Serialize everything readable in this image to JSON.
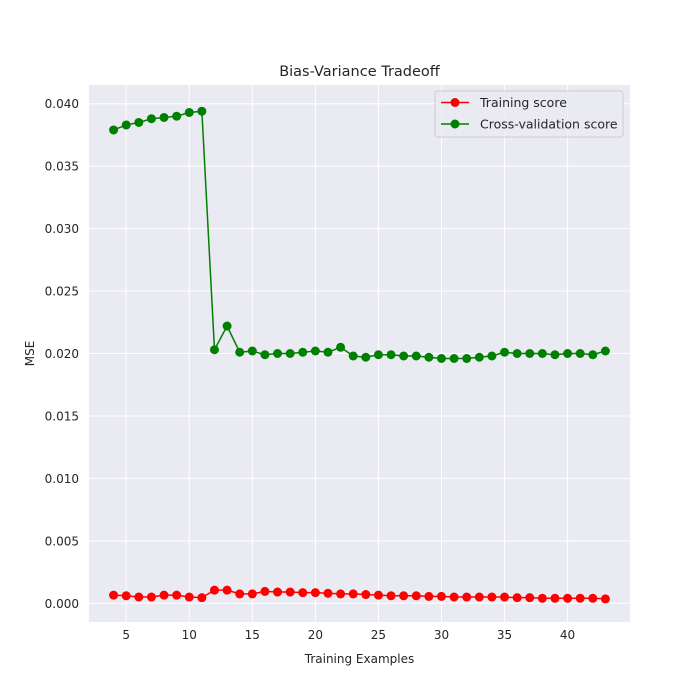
{
  "chart_data": {
    "type": "line",
    "title": "Bias-Variance Tradeoff",
    "xlabel": "Training Examples",
    "ylabel": "MSE",
    "xlim": [
      2.05,
      44.95
    ],
    "ylim": [
      -0.0015,
      0.0415
    ],
    "xticks": [
      5,
      10,
      15,
      20,
      25,
      30,
      35,
      40
    ],
    "yticks": [
      0.0,
      0.005,
      0.01,
      0.015,
      0.02,
      0.025,
      0.03,
      0.035,
      0.04
    ],
    "ytick_labels": [
      "0.000",
      "0.005",
      "0.010",
      "0.015",
      "0.020",
      "0.025",
      "0.030",
      "0.035",
      "0.040"
    ],
    "grid": true,
    "legend": "upper-right",
    "x": [
      4,
      5,
      6,
      7,
      8,
      9,
      10,
      11,
      12,
      13,
      14,
      15,
      16,
      17,
      18,
      19,
      20,
      21,
      22,
      23,
      24,
      25,
      26,
      27,
      28,
      29,
      30,
      31,
      32,
      33,
      34,
      35,
      36,
      37,
      38,
      39,
      40,
      41,
      42,
      43
    ],
    "series": [
      {
        "name": "Training score",
        "color": "#ff0000",
        "values": [
          0.00065,
          0.0006,
          0.0005,
          0.0005,
          0.00065,
          0.00065,
          0.0005,
          0.00045,
          0.00105,
          0.00105,
          0.00075,
          0.00075,
          0.00095,
          0.0009,
          0.0009,
          0.00085,
          0.00085,
          0.0008,
          0.00075,
          0.00075,
          0.0007,
          0.00065,
          0.0006,
          0.0006,
          0.0006,
          0.00055,
          0.00055,
          0.0005,
          0.0005,
          0.0005,
          0.0005,
          0.0005,
          0.00045,
          0.00045,
          0.0004,
          0.0004,
          0.0004,
          0.0004,
          0.0004,
          0.00035
        ]
      },
      {
        "name": "Cross-validation score",
        "color": "#008000",
        "values": [
          0.0379,
          0.0383,
          0.0385,
          0.0388,
          0.0389,
          0.039,
          0.0393,
          0.0394,
          0.0203,
          0.0222,
          0.0201,
          0.0202,
          0.0199,
          0.02,
          0.02,
          0.0201,
          0.0202,
          0.0201,
          0.0205,
          0.0198,
          0.0197,
          0.0199,
          0.0199,
          0.0198,
          0.0198,
          0.0197,
          0.0196,
          0.0196,
          0.0196,
          0.0197,
          0.0198,
          0.0201,
          0.02,
          0.02,
          0.02,
          0.0199,
          0.02,
          0.02,
          0.0199,
          0.0202
        ]
      }
    ]
  },
  "colors": {
    "plot_background": "#eaeaf2",
    "grid": "#ffffff",
    "text": "#262626"
  }
}
